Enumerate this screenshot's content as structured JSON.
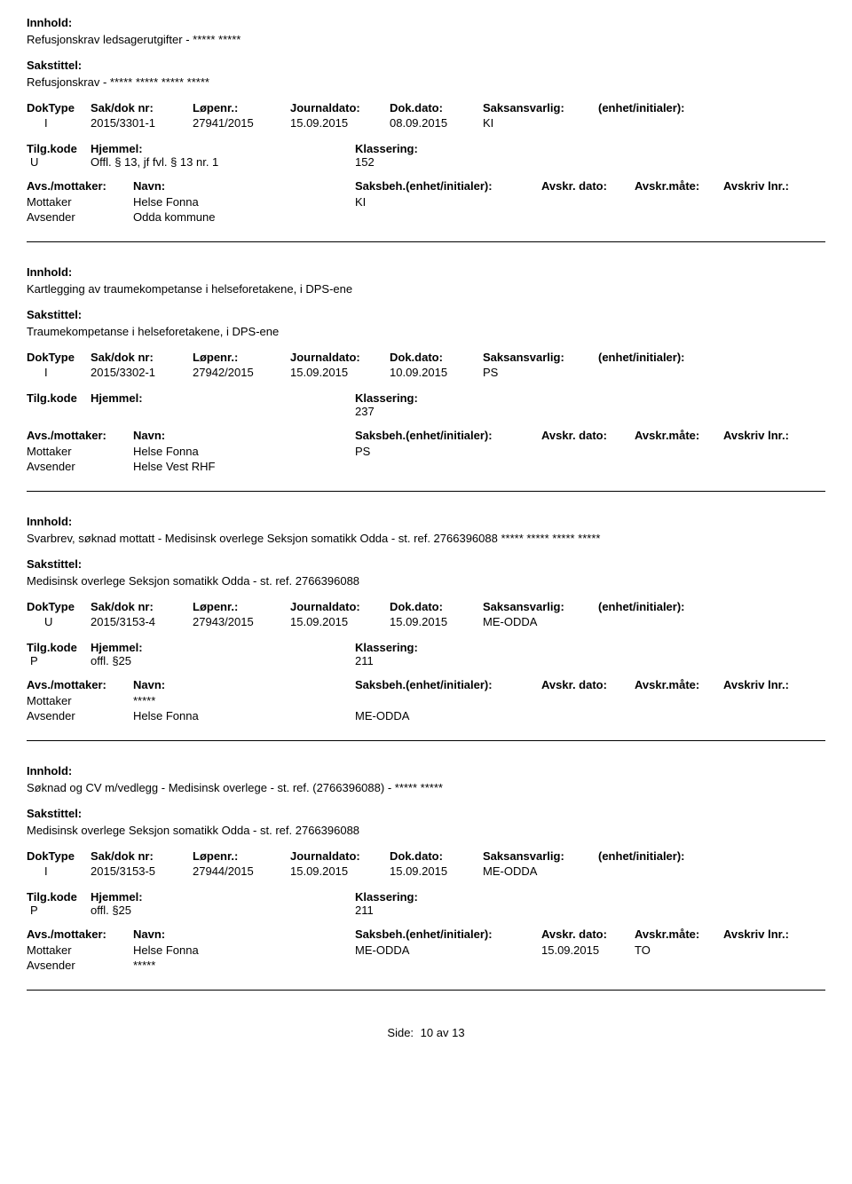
{
  "labels": {
    "innhold": "Innhold:",
    "sakstittel": "Sakstittel:",
    "doktype": "DokType",
    "sakdok": "Sak/dok nr:",
    "lopenr": "Løpenr.:",
    "journaldato": "Journaldato:",
    "dokdato": "Dok.dato:",
    "saksansvarlig": "Saksansvarlig:",
    "enhet": "(enhet/initialer):",
    "tilgkode": "Tilg.kode",
    "hjemmel": "Hjemmel:",
    "klassering": "Klassering:",
    "avsmottaker": "Avs./mottaker:",
    "navn": "Navn:",
    "saksbeh": "Saksbeh.(enhet/initialer):",
    "avskrdato": "Avskr. dato:",
    "avskrmate": "Avskr.måte:",
    "avskrivlnr": "Avskriv lnr.:",
    "mottaker": "Mottaker",
    "avsender": "Avsender",
    "side": "Side:",
    "av": "av"
  },
  "records": [
    {
      "innhold": "Refusjonskrav ledsagerutgifter - ***** *****",
      "sakstittel": "Refusjonskrav - ***** ***** ***** *****",
      "doktype": "I",
      "sakdok": "2015/3301-1",
      "lopenr": "27941/2015",
      "journaldato": "15.09.2015",
      "dokdato": "08.09.2015",
      "saksansvarlig": "KI",
      "enhet": "",
      "tilgkode": "U",
      "hjemmel": "Offl. § 13, jf fvl. § 13 nr. 1",
      "klassering": "152",
      "parties": [
        {
          "role": "Mottaker",
          "navn": "Helse Fonna",
          "saksbeh": "KI",
          "avskrdato": "",
          "avskrmate": "",
          "avskrivlnr": ""
        },
        {
          "role": "Avsender",
          "navn": "Odda kommune",
          "saksbeh": "",
          "avskrdato": "",
          "avskrmate": "",
          "avskrivlnr": ""
        }
      ]
    },
    {
      "innhold": "Kartlegging av traumekompetanse i helseforetakene, i DPS-ene",
      "sakstittel": "Traumekompetanse i helseforetakene, i DPS-ene",
      "doktype": "I",
      "sakdok": "2015/3302-1",
      "lopenr": "27942/2015",
      "journaldato": "15.09.2015",
      "dokdato": "10.09.2015",
      "saksansvarlig": "PS",
      "enhet": "",
      "tilgkode": "",
      "hjemmel": "",
      "klassering": "237",
      "parties": [
        {
          "role": "Mottaker",
          "navn": "Helse Fonna",
          "saksbeh": "PS",
          "avskrdato": "",
          "avskrmate": "",
          "avskrivlnr": ""
        },
        {
          "role": "Avsender",
          "navn": "Helse Vest RHF",
          "saksbeh": "",
          "avskrdato": "",
          "avskrmate": "",
          "avskrivlnr": ""
        }
      ]
    },
    {
      "innhold": "Svarbrev, søknad mottatt - Medisinsk overlege Seksjon somatikk Odda - st. ref. 2766396088 ***** ***** ***** *****",
      "sakstittel": "Medisinsk overlege Seksjon somatikk Odda - st. ref. 2766396088",
      "doktype": "U",
      "sakdok": "2015/3153-4",
      "lopenr": "27943/2015",
      "journaldato": "15.09.2015",
      "dokdato": "15.09.2015",
      "saksansvarlig": "ME-ODDA",
      "enhet": "",
      "tilgkode": "P",
      "hjemmel": "offl. §25",
      "klassering": "211",
      "parties": [
        {
          "role": "Mottaker",
          "navn": "*****",
          "saksbeh": "",
          "avskrdato": "",
          "avskrmate": "",
          "avskrivlnr": ""
        },
        {
          "role": "Avsender",
          "navn": "Helse Fonna",
          "saksbeh": "ME-ODDA",
          "avskrdato": "",
          "avskrmate": "",
          "avskrivlnr": ""
        }
      ]
    },
    {
      "innhold": "Søknad og CV m/vedlegg - Medisinsk overlege - st. ref. (2766396088) - ***** *****",
      "sakstittel": "Medisinsk overlege Seksjon somatikk Odda - st. ref. 2766396088",
      "doktype": "I",
      "sakdok": "2015/3153-5",
      "lopenr": "27944/2015",
      "journaldato": "15.09.2015",
      "dokdato": "15.09.2015",
      "saksansvarlig": "ME-ODDA",
      "enhet": "",
      "tilgkode": "P",
      "hjemmel": "offl. §25",
      "klassering": "211",
      "parties": [
        {
          "role": "Mottaker",
          "navn": "Helse Fonna",
          "saksbeh": "ME-ODDA",
          "avskrdato": "15.09.2015",
          "avskrmate": "TO",
          "avskrivlnr": ""
        },
        {
          "role": "Avsender",
          "navn": "*****",
          "saksbeh": "",
          "avskrdato": "",
          "avskrmate": "",
          "avskrivlnr": ""
        }
      ]
    }
  ],
  "footer": {
    "page": "10",
    "total": "13"
  }
}
